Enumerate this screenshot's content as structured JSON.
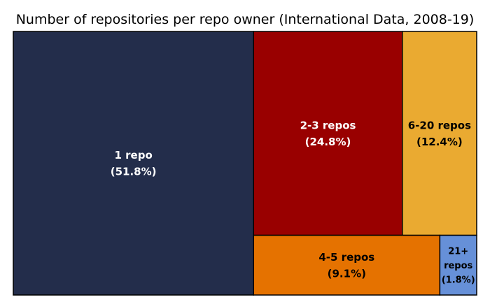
{
  "chart_data": {
    "type": "treemap",
    "title": "Number of repositories per repo owner (International Data, 2008-19)",
    "tiles": [
      {
        "name": "1 repo",
        "value": 51.8,
        "pct_label": "(51.8%)",
        "color": "#232d4b",
        "text_color": "#ffffff"
      },
      {
        "name": "2-3 repos",
        "value": 24.8,
        "pct_label": "(24.8%)",
        "color": "#990000",
        "text_color": "#ffffff"
      },
      {
        "name": "6-20 repos",
        "value": 12.4,
        "pct_label": "(12.4%)",
        "color": "#eaaa31",
        "text_color": "#000000"
      },
      {
        "name": "4-5 repos",
        "value": 9.1,
        "pct_label": "(9.1%)",
        "color": "#e57200",
        "text_color": "#000000"
      },
      {
        "name": "21+ repos",
        "name_lines": [
          "21+",
          "repos"
        ],
        "value": 1.8,
        "pct_label": "(1.8%)",
        "color": "#6690d8",
        "text_color": "#000000"
      }
    ]
  }
}
